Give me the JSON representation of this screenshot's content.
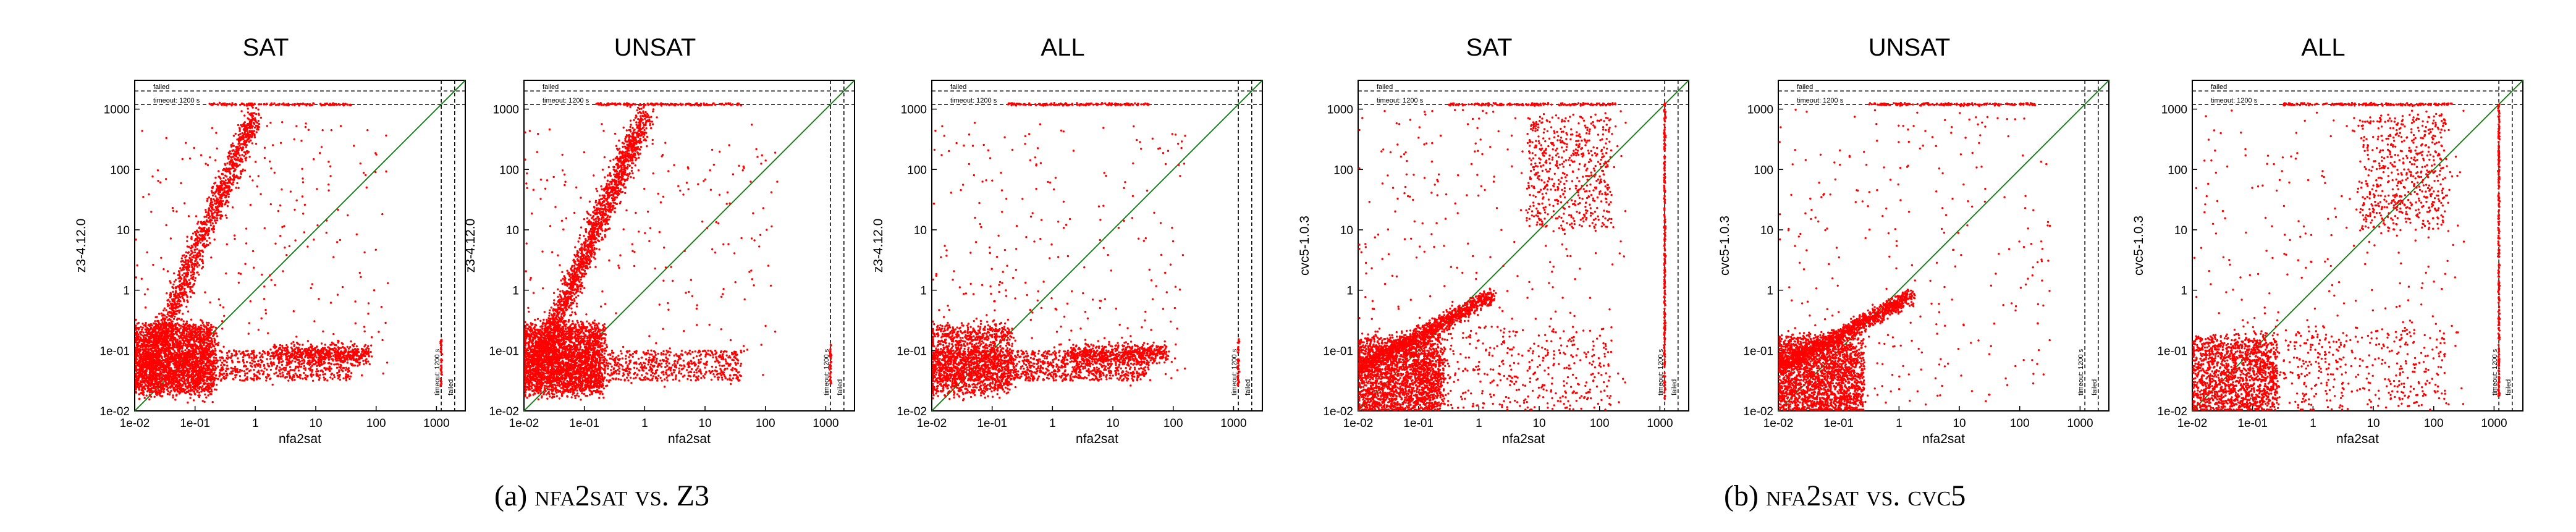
{
  "figure": {
    "captions": [
      {
        "label": "(a)",
        "tool": "nfa2sat",
        "vs": "vs.",
        "other": "Z3"
      },
      {
        "label": "(b)",
        "tool": "nfa2sat",
        "vs": "vs.",
        "other": "cvc5"
      }
    ],
    "threshold_labels": {
      "failed": "failed",
      "timeout": "timeout: 1200 s"
    }
  },
  "chart_data": [
    {
      "type": "scatter",
      "title": "SAT",
      "xlabel": "nfa2sat",
      "ylabel": "z3-4.12.0",
      "scale": "log",
      "xlim": [
        0.01,
        3000
      ],
      "ylim": [
        0.01,
        3000
      ],
      "tick_values": [
        0.01,
        0.1,
        1,
        10,
        100,
        1000
      ],
      "tick_labels": [
        "1e-02",
        "1e-01",
        "1",
        "10",
        "100",
        "1000"
      ],
      "grid": false,
      "point_color": "#ff0000",
      "diagonal_color": "#008000",
      "timeout_s": 1200,
      "failed_value": 2000
    },
    {
      "type": "scatter",
      "title": "UNSAT",
      "xlabel": "nfa2sat",
      "ylabel": "z3-4.12.0",
      "scale": "log",
      "xlim": [
        0.01,
        3000
      ],
      "ylim": [
        0.01,
        3000
      ],
      "tick_values": [
        0.01,
        0.1,
        1,
        10,
        100,
        1000
      ],
      "tick_labels": [
        "1e-02",
        "1e-01",
        "1",
        "10",
        "100",
        "1000"
      ],
      "grid": false,
      "point_color": "#ff0000",
      "diagonal_color": "#008000",
      "timeout_s": 1200,
      "failed_value": 2000
    },
    {
      "type": "scatter",
      "title": "ALL",
      "xlabel": "nfa2sat",
      "ylabel": "z3-4.12.0",
      "scale": "log",
      "xlim": [
        0.01,
        3000
      ],
      "ylim": [
        0.01,
        3000
      ],
      "tick_values": [
        0.01,
        0.1,
        1,
        10,
        100,
        1000
      ],
      "tick_labels": [
        "1e-02",
        "1e-01",
        "1",
        "10",
        "100",
        "1000"
      ],
      "grid": false,
      "point_color": "#ff0000",
      "diagonal_color": "#008000",
      "timeout_s": 1200,
      "failed_value": 2000
    },
    {
      "type": "scatter",
      "title": "SAT",
      "xlabel": "nfa2sat",
      "ylabel": "cvc5-1.0.3",
      "scale": "log",
      "xlim": [
        0.01,
        3000
      ],
      "ylim": [
        0.01,
        3000
      ],
      "tick_values": [
        0.01,
        0.1,
        1,
        10,
        100,
        1000
      ],
      "tick_labels": [
        "1e-02",
        "1e-01",
        "1",
        "10",
        "100",
        "1000"
      ],
      "grid": false,
      "point_color": "#ff0000",
      "diagonal_color": "#008000",
      "timeout_s": 1200,
      "failed_value": 2000
    },
    {
      "type": "scatter",
      "title": "UNSAT",
      "xlabel": "nfa2sat",
      "ylabel": "cvc5-1.0.3",
      "scale": "log",
      "xlim": [
        0.01,
        3000
      ],
      "ylim": [
        0.01,
        3000
      ],
      "tick_values": [
        0.01,
        0.1,
        1,
        10,
        100,
        1000
      ],
      "tick_labels": [
        "1e-02",
        "1e-01",
        "1",
        "10",
        "100",
        "1000"
      ],
      "grid": false,
      "point_color": "#ff0000",
      "diagonal_color": "#008000",
      "timeout_s": 1200,
      "failed_value": 2000
    },
    {
      "type": "scatter",
      "title": "ALL",
      "xlabel": "nfa2sat",
      "ylabel": "cvc5-1.0.3",
      "scale": "log",
      "xlim": [
        0.01,
        3000
      ],
      "ylim": [
        0.01,
        3000
      ],
      "tick_values": [
        0.01,
        0.1,
        1,
        10,
        100,
        1000
      ],
      "tick_labels": [
        "1e-02",
        "1e-01",
        "1",
        "10",
        "100",
        "1000"
      ],
      "grid": false,
      "point_color": "#ff0000",
      "diagonal_color": "#008000",
      "timeout_s": 1200,
      "failed_value": 2000
    }
  ]
}
